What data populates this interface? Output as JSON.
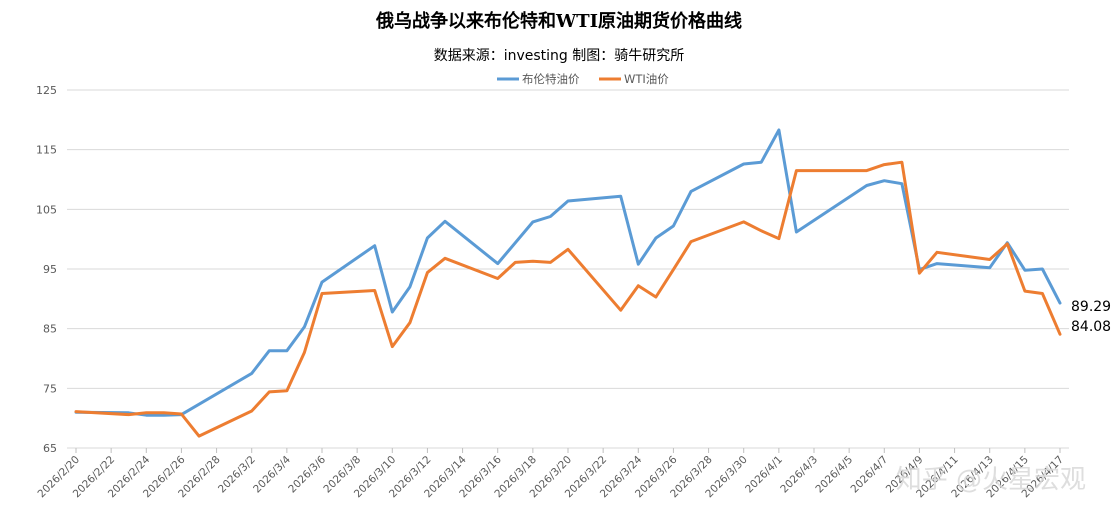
{
  "chart_data": {
    "type": "line",
    "title": "俄乌战争以来布伦特和WTI原油期货价格曲线",
    "subtitle": "数据来源：investing 制图：骑牛研究所",
    "ylim": [
      65,
      125
    ],
    "yticks": [
      65,
      75,
      85,
      95,
      105,
      115,
      125
    ],
    "grid": true,
    "legend_position": "top",
    "watermark": "知乎 @火星宏观",
    "x_tick_labels": [
      "2026/2/20",
      "2026/2/22",
      "2026/2/24",
      "2026/2/26",
      "2026/2/28",
      "2026/3/2",
      "2026/3/4",
      "2026/3/6",
      "2026/3/8",
      "2026/3/10",
      "2026/3/12",
      "2026/3/14",
      "2026/3/16",
      "2026/3/18",
      "2026/3/20",
      "2026/3/22",
      "2026/3/24",
      "2026/3/26",
      "2026/3/28",
      "2026/3/30",
      "2026/4/1",
      "2026/4/3",
      "2026/4/5",
      "2026/4/7",
      "2026/4/9",
      "2026/4/11",
      "2026/4/13",
      "2026/4/15",
      "2026/4/17"
    ],
    "series": [
      {
        "name": "布伦特油价",
        "color": "#5b9bd5",
        "end_label": "89.29",
        "points": [
          [
            "2026/2/20",
            71.0
          ],
          [
            "2026/2/23",
            70.9
          ],
          [
            "2026/2/24",
            70.5
          ],
          [
            "2026/2/25",
            70.5
          ],
          [
            "2026/2/26",
            70.6
          ],
          [
            "2026/3/2",
            77.5
          ],
          [
            "2026/3/3",
            81.3
          ],
          [
            "2026/3/4",
            81.3
          ],
          [
            "2026/3/5",
            85.3
          ],
          [
            "2026/3/6",
            92.8
          ],
          [
            "2026/3/9",
            98.9
          ],
          [
            "2026/3/10",
            87.8
          ],
          [
            "2026/3/11",
            92.0
          ],
          [
            "2026/3/12",
            100.2
          ],
          [
            "2026/3/13",
            103.0
          ],
          [
            "2026/3/16",
            95.9
          ],
          [
            "2026/3/18",
            102.9
          ],
          [
            "2026/3/19",
            103.8
          ],
          [
            "2026/3/20",
            106.4
          ],
          [
            "2026/3/23",
            107.2
          ],
          [
            "2026/3/24",
            95.8
          ],
          [
            "2026/3/25",
            100.2
          ],
          [
            "2026/3/26",
            102.2
          ],
          [
            "2026/3/27",
            108.0
          ],
          [
            "2026/3/30",
            112.6
          ],
          [
            "2026/3/31",
            112.9
          ],
          [
            "2026/4/1",
            118.3
          ],
          [
            "2026/4/2",
            101.2
          ],
          [
            "2026/4/6",
            109.0
          ],
          [
            "2026/4/7",
            109.8
          ],
          [
            "2026/4/8",
            109.3
          ],
          [
            "2026/4/9",
            94.9
          ],
          [
            "2026/4/10",
            95.9
          ],
          [
            "2026/4/13",
            95.2
          ],
          [
            "2026/4/14",
            99.4
          ],
          [
            "2026/4/15",
            94.8
          ],
          [
            "2026/4/16",
            95.0
          ],
          [
            "2026/4/17",
            89.29
          ]
        ]
      },
      {
        "name": "WTI油价",
        "color": "#ed7d31",
        "end_label": "84.08",
        "points": [
          [
            "2026/2/20",
            71.1
          ],
          [
            "2026/2/23",
            70.6
          ],
          [
            "2026/2/24",
            70.9
          ],
          [
            "2026/2/25",
            70.9
          ],
          [
            "2026/2/26",
            70.7
          ],
          [
            "2026/2/27",
            67.0
          ],
          [
            "2026/3/2",
            71.2
          ],
          [
            "2026/3/3",
            74.4
          ],
          [
            "2026/3/4",
            74.6
          ],
          [
            "2026/3/5",
            81.0
          ],
          [
            "2026/3/6",
            90.9
          ],
          [
            "2026/3/9",
            91.4
          ],
          [
            "2026/3/10",
            82.0
          ],
          [
            "2026/3/11",
            86.0
          ],
          [
            "2026/3/12",
            94.4
          ],
          [
            "2026/3/13",
            96.8
          ],
          [
            "2026/3/16",
            93.4
          ],
          [
            "2026/3/17",
            96.1
          ],
          [
            "2026/3/18",
            96.3
          ],
          [
            "2026/3/19",
            96.1
          ],
          [
            "2026/3/20",
            98.3
          ],
          [
            "2026/3/23",
            88.1
          ],
          [
            "2026/3/24",
            92.2
          ],
          [
            "2026/3/25",
            90.3
          ],
          [
            "2026/3/26",
            94.9
          ],
          [
            "2026/3/27",
            99.6
          ],
          [
            "2026/3/30",
            102.9
          ],
          [
            "2026/3/31",
            101.4
          ],
          [
            "2026/4/1",
            100.1
          ],
          [
            "2026/4/2",
            111.5
          ],
          [
            "2026/4/6",
            111.5
          ],
          [
            "2026/4/7",
            112.5
          ],
          [
            "2026/4/8",
            112.9
          ],
          [
            "2026/4/9",
            94.3
          ],
          [
            "2026/4/10",
            97.8
          ],
          [
            "2026/4/13",
            96.6
          ],
          [
            "2026/4/14",
            99.2
          ],
          [
            "2026/4/15",
            91.3
          ],
          [
            "2026/4/16",
            90.9
          ],
          [
            "2026/4/17",
            84.08
          ]
        ]
      }
    ]
  }
}
